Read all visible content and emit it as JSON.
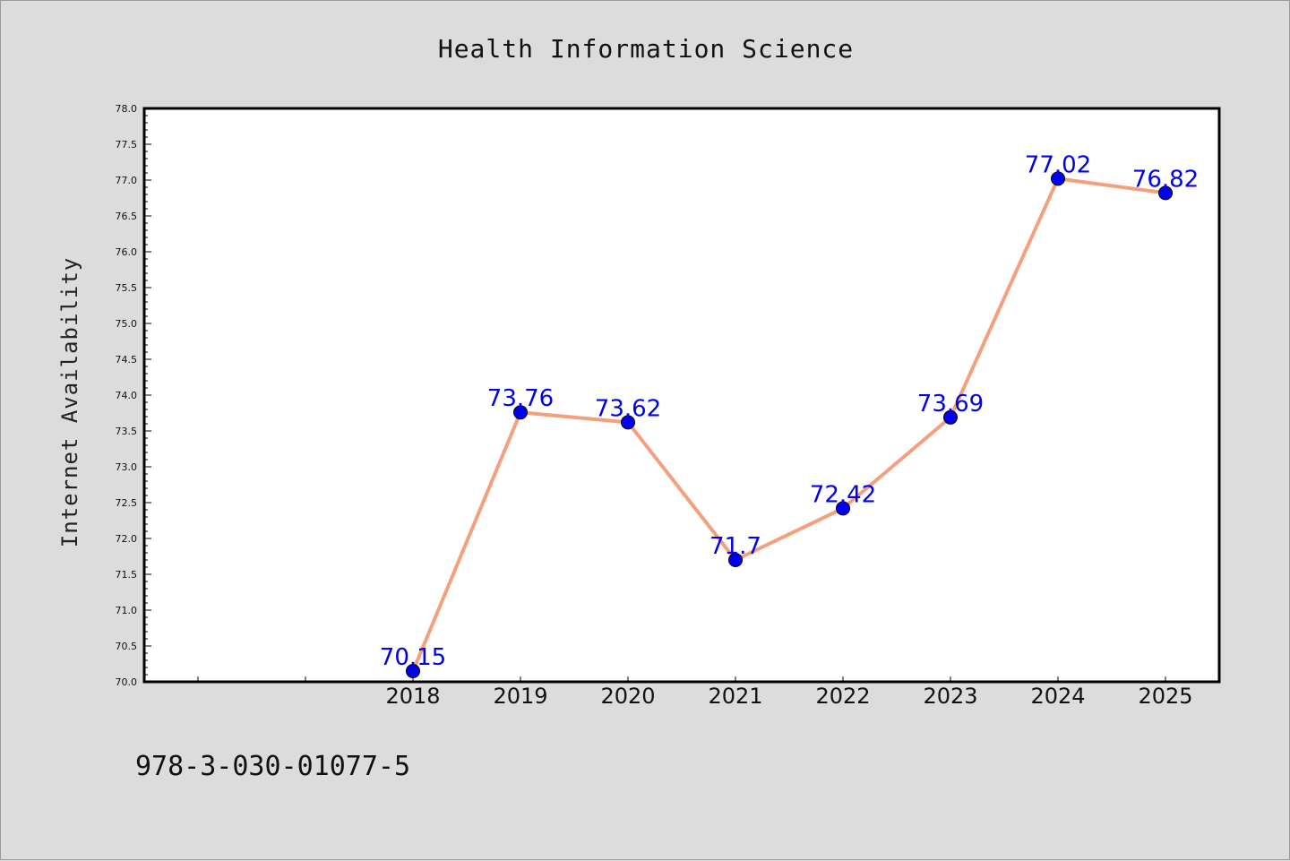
{
  "chart_data": {
    "type": "line",
    "title": "Health Information Science",
    "xlabel": "",
    "ylabel": "Internet Availability",
    "categories": [
      "",
      "",
      "2018",
      "2019",
      "2020",
      "2021",
      "2022",
      "2023",
      "2024",
      "2025"
    ],
    "series": [
      {
        "values": [
          null,
          null,
          70.15,
          73.76,
          73.62,
          71.7,
          72.42,
          73.69,
          77.02,
          76.82
        ],
        "labels": [
          "",
          "",
          "70.15",
          "73.76",
          "73.62",
          "71.7",
          "72.42",
          "73.69",
          "77.02",
          "76.82"
        ]
      }
    ],
    "ylim": [
      70.0,
      78.0
    ],
    "yticks": [
      "70.0",
      "70.5",
      "71.0",
      "71.5",
      "72.0",
      "72.5",
      "73.0",
      "73.5",
      "74.0",
      "74.5",
      "75.0",
      "75.5",
      "76.0",
      "76.5",
      "77.0",
      "77.5",
      "78.0"
    ],
    "grid": false,
    "line_color": "#f4a07e",
    "marker_color": "#0000ee",
    "label_color": "#0000ee",
    "background": "#dcdcdc",
    "plot_background": "#ffffff"
  },
  "footer": {
    "text": "978-3-030-01077-5"
  }
}
